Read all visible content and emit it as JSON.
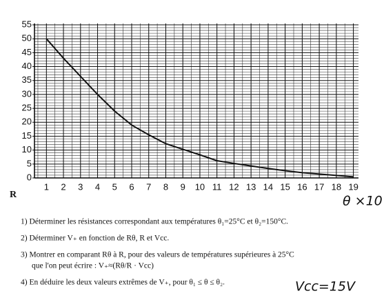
{
  "chart_data": {
    "type": "line",
    "ylabel": "R",
    "xlabel": "θ ×10",
    "x": [
      1,
      2,
      3,
      4,
      5,
      6,
      7,
      8,
      9,
      10,
      11,
      12,
      13,
      14,
      15,
      16,
      17,
      18,
      19
    ],
    "values": [
      50,
      43,
      36.5,
      30,
      24,
      19,
      15.5,
      12.3,
      10.3,
      8.3,
      6.2,
      5.2,
      4.3,
      3.4,
      2.6,
      1.9,
      1.4,
      0.9,
      0.4
    ],
    "color": "#111111",
    "xlim": [
      0.3,
      19.3
    ],
    "ylim": [
      0,
      55.5
    ],
    "xticks": [
      1,
      2,
      3,
      4,
      5,
      6,
      7,
      8,
      9,
      10,
      11,
      12,
      13,
      14,
      15,
      16,
      17,
      18,
      19
    ],
    "yticks": [
      0,
      5,
      10,
      15,
      20,
      25,
      30,
      35,
      40,
      45,
      50,
      55
    ],
    "grid": true
  },
  "questions": [
    [
      "1)  Déterminer les résistances correspondant aux températures θ₁=25°C et θ₂=150°C."
    ],
    [
      "2)  Déterminer V₊ en fonction de Rθ, R et Vcc."
    ],
    [
      "3)  Montrer en comparant Rθ à R, pour des valeurs de températures supérieures à 25°C",
      "que l'on peut écrire : V₊≈(Rθ/R · Vcc)"
    ],
    [
      "4)  En déduire les deux valeurs extrêmes de V₊, pour θ₁ ≤ θ ≤ θ₂."
    ]
  ],
  "handwritten": "Vcc=15V"
}
